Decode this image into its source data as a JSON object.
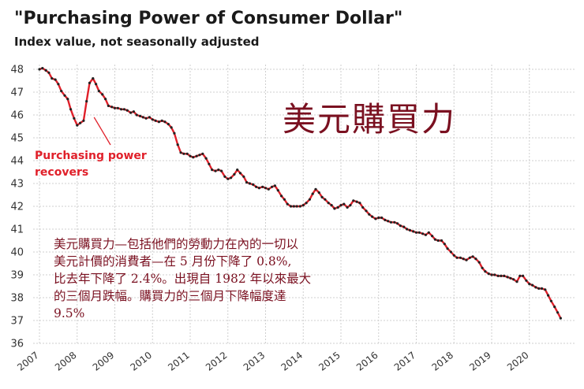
{
  "chart_data": {
    "type": "line",
    "title": "\"Purchasing Power of Consumer Dollar\"",
    "subtitle": "Index value, not seasonally adjusted",
    "ylim": [
      36,
      48
    ],
    "yticks": [
      48,
      47,
      46,
      45,
      44,
      43,
      42,
      41,
      40,
      39,
      38,
      37,
      36
    ],
    "xticks": [
      "2007",
      "2008",
      "2009",
      "2010",
      "2011",
      "2012",
      "2013",
      "2014",
      "2015",
      "2016",
      "2017",
      "2018",
      "2019",
      "2020"
    ],
    "grid": true,
    "annotation": {
      "lines": [
        "Purchasing power",
        "recovers"
      ],
      "point": {
        "x": 2008.45,
        "y": 45.9
      }
    },
    "series": [
      {
        "line_color": "#e0202a",
        "marker_color": "#222222",
        "x": [
          2007.0,
          2007.08,
          2007.17,
          2007.25,
          2007.33,
          2007.42,
          2007.5,
          2007.58,
          2007.67,
          2007.75,
          2007.83,
          2007.92,
          2008.0,
          2008.08,
          2008.17,
          2008.25,
          2008.33,
          2008.42,
          2008.5,
          2008.58,
          2008.67,
          2008.75,
          2008.83,
          2008.92,
          2009.0,
          2009.08,
          2009.17,
          2009.25,
          2009.33,
          2009.42,
          2009.5,
          2009.58,
          2009.67,
          2009.75,
          2009.83,
          2009.92,
          2010.0,
          2010.08,
          2010.17,
          2010.25,
          2010.33,
          2010.42,
          2010.5,
          2010.58,
          2010.67,
          2010.75,
          2010.83,
          2010.92,
          2011.0,
          2011.08,
          2011.17,
          2011.25,
          2011.33,
          2011.42,
          2011.5,
          2011.58,
          2011.67,
          2011.75,
          2011.83,
          2011.92,
          2012.0,
          2012.08,
          2012.17,
          2012.25,
          2012.33,
          2012.42,
          2012.5,
          2012.58,
          2012.67,
          2012.75,
          2012.83,
          2012.92,
          2013.0,
          2013.08,
          2013.17,
          2013.25,
          2013.33,
          2013.42,
          2013.5,
          2013.58,
          2013.67,
          2013.75,
          2013.83,
          2013.92,
          2014.0,
          2014.08,
          2014.17,
          2014.25,
          2014.33,
          2014.42,
          2014.5,
          2014.58,
          2014.67,
          2014.75,
          2014.83,
          2014.92,
          2015.0,
          2015.08,
          2015.17,
          2015.25,
          2015.33,
          2015.42,
          2015.5,
          2015.58,
          2015.67,
          2015.75,
          2015.83,
          2015.92,
          2016.0,
          2016.08,
          2016.17,
          2016.25,
          2016.33,
          2016.42,
          2016.5,
          2016.58,
          2016.67,
          2016.75,
          2016.83,
          2016.92,
          2017.0,
          2017.08,
          2017.17,
          2017.25,
          2017.33,
          2017.42,
          2017.5,
          2017.58,
          2017.67,
          2017.75,
          2017.83,
          2017.92,
          2018.0,
          2018.08,
          2018.17,
          2018.25,
          2018.33,
          2018.42,
          2018.5,
          2018.58,
          2018.67,
          2018.75,
          2018.83,
          2018.92,
          2019.0,
          2019.08,
          2019.17,
          2019.25,
          2019.33,
          2019.42,
          2019.5,
          2019.58,
          2019.67,
          2019.75,
          2019.83,
          2019.92,
          2020.0,
          2020.08,
          2020.17,
          2020.25,
          2020.33,
          2020.42,
          2020.5,
          2020.58,
          2020.67,
          2020.75,
          2020.83
        ],
        "y": [
          48.0,
          48.05,
          47.95,
          47.85,
          47.6,
          47.55,
          47.35,
          47.05,
          46.85,
          46.7,
          46.25,
          45.85,
          45.55,
          45.65,
          45.75,
          46.6,
          47.4,
          47.6,
          47.35,
          47.05,
          46.9,
          46.7,
          46.4,
          46.35,
          46.3,
          46.3,
          46.25,
          46.25,
          46.2,
          46.1,
          46.15,
          46.0,
          45.95,
          45.9,
          45.85,
          45.9,
          45.8,
          45.75,
          45.7,
          45.75,
          45.7,
          45.6,
          45.45,
          45.2,
          44.7,
          44.35,
          44.3,
          44.3,
          44.2,
          44.15,
          44.2,
          44.25,
          44.3,
          44.1,
          43.85,
          43.6,
          43.55,
          43.6,
          43.55,
          43.3,
          43.2,
          43.25,
          43.4,
          43.6,
          43.45,
          43.3,
          43.05,
          43.0,
          42.95,
          42.85,
          42.8,
          42.85,
          42.8,
          42.75,
          42.85,
          42.9,
          42.7,
          42.45,
          42.3,
          42.1,
          42.0,
          42.0,
          42.0,
          42.0,
          42.05,
          42.15,
          42.3,
          42.55,
          42.75,
          42.6,
          42.4,
          42.3,
          42.15,
          42.05,
          41.9,
          41.95,
          42.05,
          42.1,
          41.95,
          42.05,
          42.25,
          42.2,
          42.15,
          41.95,
          41.8,
          41.65,
          41.55,
          41.45,
          41.5,
          41.5,
          41.4,
          41.35,
          41.3,
          41.3,
          41.25,
          41.15,
          41.1,
          41.0,
          40.95,
          40.9,
          40.85,
          40.85,
          40.8,
          40.75,
          40.85,
          40.7,
          40.55,
          40.5,
          40.5,
          40.35,
          40.15,
          40.0,
          39.85,
          39.75,
          39.75,
          39.7,
          39.65,
          39.75,
          39.8,
          39.7,
          39.55,
          39.3,
          39.15,
          39.05,
          39.0,
          39.0,
          38.95,
          38.95,
          38.95,
          38.9,
          38.85,
          38.8,
          38.7,
          38.95,
          38.95,
          38.75,
          38.6,
          38.55,
          38.45,
          38.4,
          38.4,
          38.35,
          38.1,
          37.85,
          37.6,
          37.35,
          37.1
        ]
      }
    ]
  },
  "overlay": {
    "headline": "美元購買力",
    "note_lines": [
      "美元購買力—包括他們的勞動力在內的一切以",
      "美元計價的消費者—在 5 月份下降了 0.8%,",
      "比去年下降了 2.4%。出現自 1982 年以來最大",
      "的三個月跌幅。購買力的三個月下降幅度達",
      "9.5%"
    ]
  }
}
